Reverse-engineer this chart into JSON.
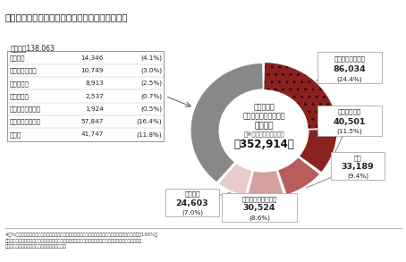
{
  "title": "（２）民事上の個別労働紛争｜相談内容別の件数",
  "center_title_line1": "令和３年度",
  "center_title_line2": "民事上の個別労働紛争",
  "center_subtitle": "相談件数",
  "center_note": "（※内訳延べ合計件数）",
  "center_total": "計352,914件",
  "pie_segments": [
    {
      "label": "いじめ・嫌がらせ",
      "value": 86034,
      "pct": "(24.4%)",
      "color": "#8B2222",
      "hatch": ".."
    },
    {
      "label": "自己都合退職",
      "value": 40501,
      "pct": "(11.5%)",
      "color": "#8B2222",
      "hatch": ""
    },
    {
      "label": "解雇",
      "value": 33189,
      "pct": "(9.4%)",
      "color": "#B85C5C",
      "hatch": ""
    },
    {
      "label": "労働条件の引き下げ",
      "value": 30524,
      "pct": "(8.6%)",
      "color": "#D4A0A0",
      "hatch": ""
    },
    {
      "label": "退職勧奨",
      "value": 24603,
      "pct": "(7.0%)",
      "color": "#E8CCCC",
      "hatch": ""
    },
    {
      "label": "ほか",
      "value": 138063,
      "pct": "",
      "color": "#888888",
      "hatch": ""
    }
  ],
  "table_header": "ほか　計138,063",
  "table_rows": [
    {
      "label": "雇い止め",
      "value": "14,346",
      "pct": "(4.1%)"
    },
    {
      "label": "出向・配置転換",
      "value": "10,749",
      "pct": "(3.0%)"
    },
    {
      "label": "雇用管理等",
      "value": "8,913",
      "pct": "(2.5%)"
    },
    {
      "label": "募集・採用",
      "value": "2,537",
      "pct": "(0.7%)"
    },
    {
      "label": "採用内定取り消し",
      "value": "1,924",
      "pct": "(0.5%)"
    },
    {
      "label": "その他の労働条件",
      "value": "57,847",
      "pct": "(16.4%)"
    },
    {
      "label": "その他",
      "value": "41,747",
      "pct": "(11.8%)"
    }
  ],
  "footnote_lines": [
    "※　%は相談内容の全体（内訳延べ合計件数）に占める割合。合計値は、四捨五入による端数処理の関係で100%に",
    "ならないことがある。なお、内訳延べ合計件数は、１回の相談で複数の内容にまたがる相談が行われた場合に",
    "は、複数の相談内容を件数として計上したもの。"
  ],
  "bg_color": "#ffffff",
  "title_bg": "#e0e0e0"
}
